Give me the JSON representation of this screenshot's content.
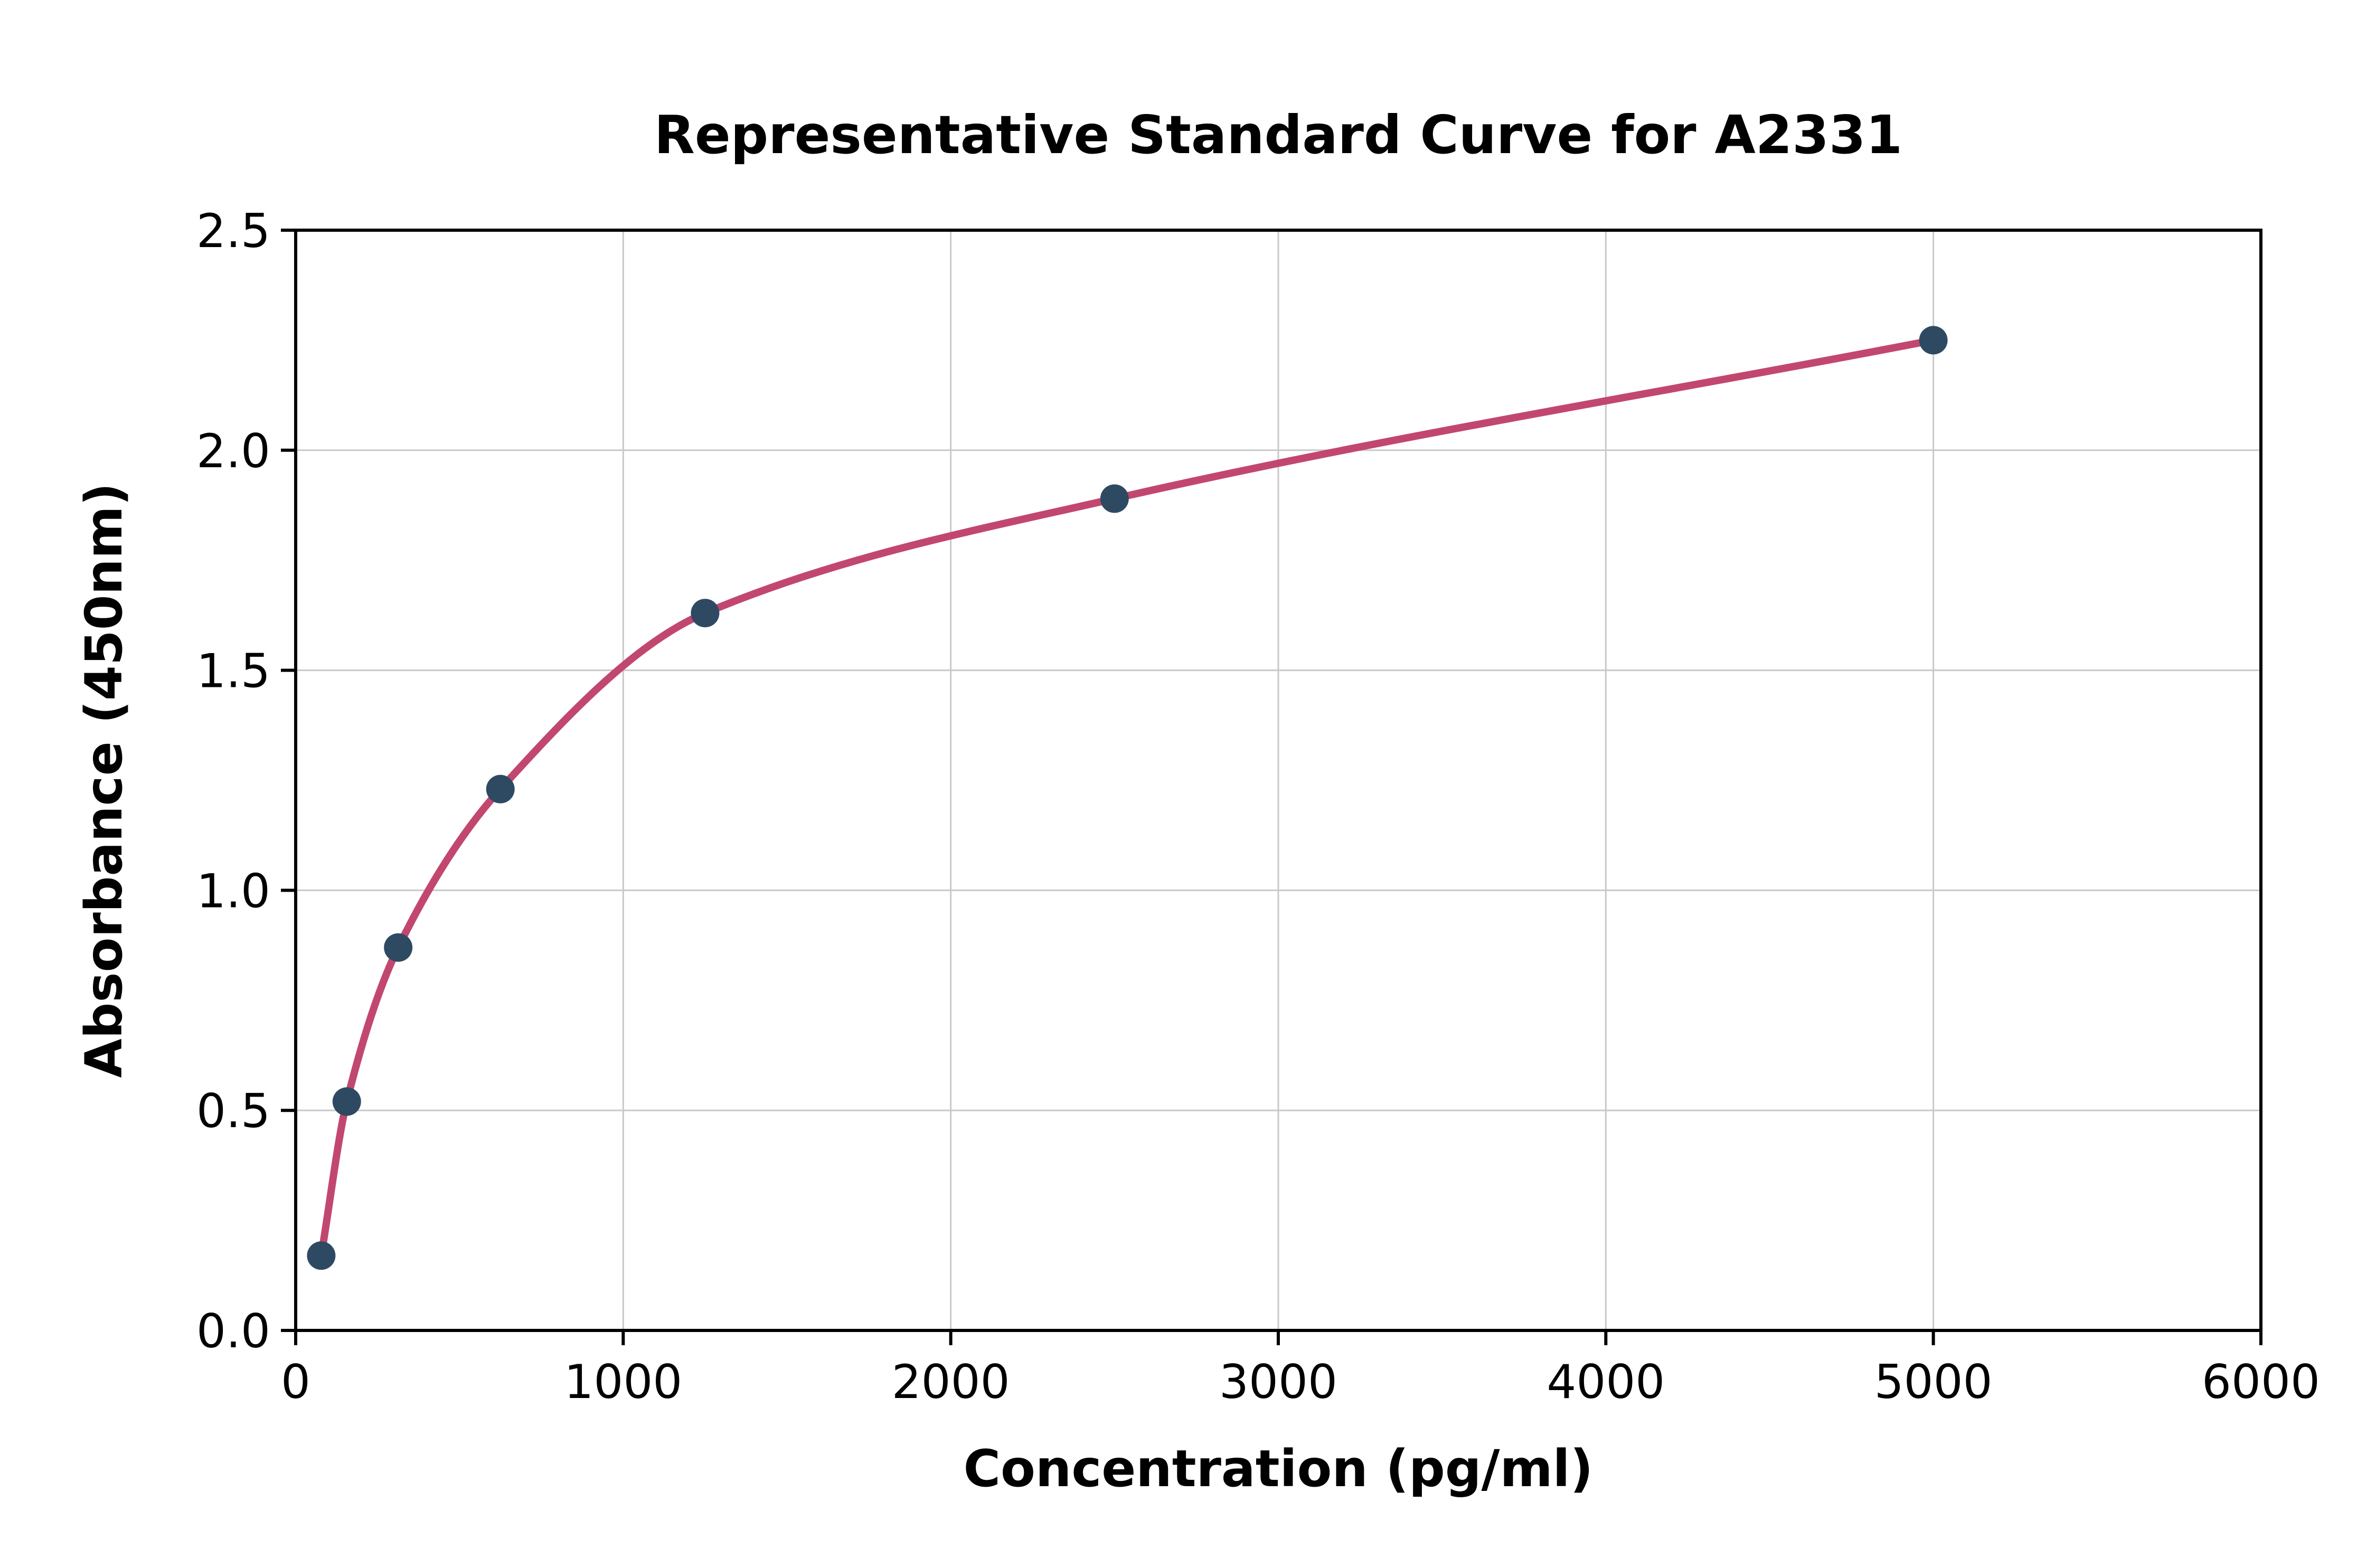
{
  "chart_data": {
    "type": "scatter",
    "title": "Representative Standard Curve for A2331",
    "xlabel": "Concentration (pg/ml)",
    "ylabel": "Absorbance (450nm)",
    "xlim": [
      0,
      6000
    ],
    "ylim": [
      0,
      2.5
    ],
    "xticks": [
      0,
      1000,
      2000,
      3000,
      4000,
      5000,
      6000
    ],
    "xtick_labels": [
      "0",
      "1000",
      "2000",
      "3000",
      "4000",
      "5000",
      "6000"
    ],
    "yticks": [
      0.0,
      0.5,
      1.0,
      1.5,
      2.0,
      2.5
    ],
    "ytick_labels": [
      "0.0",
      "0.5",
      "1.0",
      "1.5",
      "2.0",
      "2.5"
    ],
    "grid": true,
    "legend": false,
    "points": [
      {
        "x": 78,
        "y": 0.17
      },
      {
        "x": 156,
        "y": 0.52
      },
      {
        "x": 313,
        "y": 0.87
      },
      {
        "x": 625,
        "y": 1.23
      },
      {
        "x": 1250,
        "y": 1.63
      },
      {
        "x": 2500,
        "y": 1.89
      },
      {
        "x": 5000,
        "y": 2.25
      }
    ],
    "colors": {
      "curve": "#c2476f",
      "points": "#2e4a63",
      "grid": "#c9c9c9",
      "frame": "#000000",
      "background": "#ffffff"
    }
  }
}
